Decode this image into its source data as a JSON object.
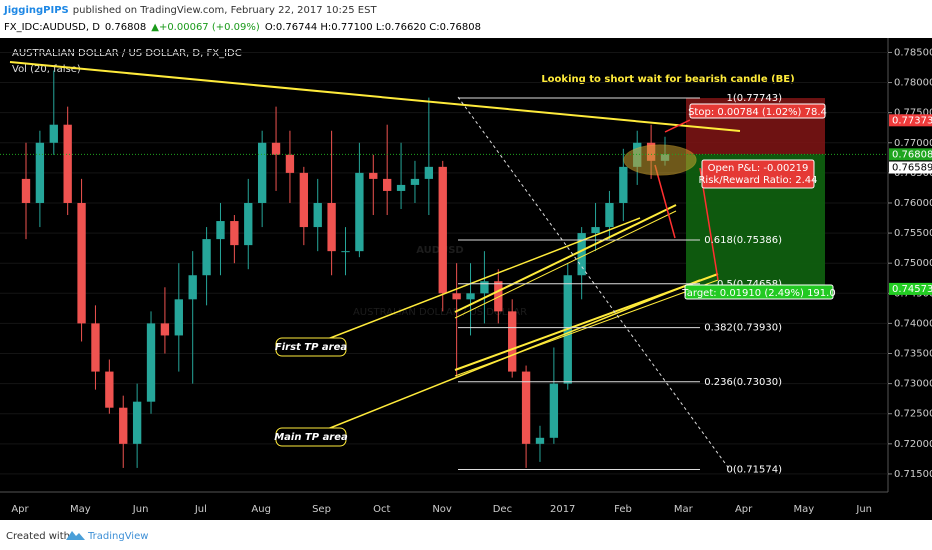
{
  "header": {
    "author": "JiggingPIPS",
    "published": "published on TradingView.com, February 22, 2017 10:25 EST",
    "symbol": "FX_IDC:AUDUSD, D",
    "last": "0.76808",
    "change": "▲+0.00067 (+0.09%)",
    "ohlc": "O:0.76744 H:0.77100 L:0.76620 C:0.76808"
  },
  "footer": {
    "created": "Created with",
    "brand": "TradingView"
  },
  "chart_data": {
    "type": "candlestick",
    "title": "AUSTRALIAN DOLLAR / US DOLLAR, D, FX_IDC",
    "volume_label": "Vol (20, false)",
    "watermark": "AUDUSD",
    "watermark_sub": "AUSTRALIAN DOLLAR / US DOLLAR",
    "annotation": "Looking to short wait for bearish candle (BE)",
    "callouts": [
      "First TP area",
      "Main TP area"
    ],
    "stop_label": "Stop: 0.00784 (1.02%) 78.4",
    "pnl_label": "Open P&L: -0.00219",
    "rr_label": "Risk/Reward Ratio: 2.44",
    "target_label": "Target: 0.01910 (2.49%) 191.0",
    "up_color": "#26a69a",
    "down_color": "#ef5350",
    "month_labels": [
      "Apr",
      "May",
      "Jun",
      "Jul",
      "Aug",
      "Sep",
      "Oct",
      "Nov",
      "Dec",
      "2017",
      "Feb",
      "Mar",
      "Apr",
      "May",
      "Jun"
    ],
    "open": [
      0.764,
      0.76,
      0.77,
      0.773,
      0.76,
      0.74,
      0.732,
      0.726,
      0.72,
      0.727,
      0.74,
      0.738,
      0.744,
      0.748,
      0.754,
      0.757,
      0.753,
      0.76,
      0.77,
      0.768,
      0.765,
      0.756,
      0.76,
      0.752,
      0.752,
      0.765,
      0.764,
      0.762,
      0.763,
      0.764,
      0.766,
      0.745,
      0.744,
      0.745,
      0.747,
      0.742,
      0.732,
      0.72,
      0.721,
      0.73,
      0.748,
      0.755,
      0.756,
      0.76,
      0.766,
      0.77,
      0.767
    ],
    "high": [
      0.77,
      0.772,
      0.782,
      0.776,
      0.764,
      0.743,
      0.734,
      0.728,
      0.73,
      0.742,
      0.746,
      0.75,
      0.752,
      0.756,
      0.76,
      0.758,
      0.764,
      0.772,
      0.776,
      0.772,
      0.766,
      0.764,
      0.772,
      0.756,
      0.77,
      0.768,
      0.773,
      0.77,
      0.767,
      0.7775,
      0.767,
      0.75,
      0.75,
      0.752,
      0.749,
      0.744,
      0.733,
      0.723,
      0.736,
      0.75,
      0.756,
      0.76,
      0.762,
      0.769,
      0.772,
      0.773,
      0.771
    ],
    "low": [
      0.754,
      0.756,
      0.768,
      0.758,
      0.737,
      0.729,
      0.725,
      0.716,
      0.716,
      0.725,
      0.735,
      0.732,
      0.73,
      0.743,
      0.748,
      0.75,
      0.749,
      0.756,
      0.762,
      0.76,
      0.753,
      0.752,
      0.748,
      0.748,
      0.751,
      0.758,
      0.758,
      0.759,
      0.76,
      0.758,
      0.742,
      0.731,
      0.738,
      0.74,
      0.74,
      0.731,
      0.716,
      0.717,
      0.72,
      0.729,
      0.744,
      0.752,
      0.754,
      0.757,
      0.763,
      0.764,
      0.7662
    ],
    "close": [
      0.76,
      0.77,
      0.773,
      0.76,
      0.74,
      0.732,
      0.726,
      0.72,
      0.727,
      0.74,
      0.738,
      0.744,
      0.748,
      0.754,
      0.757,
      0.753,
      0.76,
      0.77,
      0.768,
      0.765,
      0.756,
      0.76,
      0.752,
      0.752,
      0.765,
      0.764,
      0.762,
      0.763,
      0.764,
      0.766,
      0.745,
      0.744,
      0.745,
      0.747,
      0.742,
      0.732,
      0.72,
      0.721,
      0.73,
      0.748,
      0.755,
      0.756,
      0.76,
      0.766,
      0.77,
      0.767,
      0.7681
    ],
    "fib_levels": [
      {
        "value": 0.77743,
        "label": "1(0.77743)"
      },
      {
        "value": 0.75386,
        "label": "0.618(0.75386)"
      },
      {
        "value": 0.74658,
        "label": "0.5(0.74658)"
      },
      {
        "value": 0.7393,
        "label": "0.382(0.73930)"
      },
      {
        "value": 0.7303,
        "label": "0.236(0.73030)"
      },
      {
        "value": 0.71574,
        "label": "0(0.71574)"
      }
    ],
    "price_tags": [
      {
        "value": 0.77373,
        "color": "#ef3b3b"
      },
      {
        "value": 0.76808,
        "color": "#1fa51f"
      },
      {
        "value": 0.76589,
        "color": "#ffffff"
      },
      {
        "value": 0.74573,
        "color": "#22cc22"
      }
    ],
    "ylim": [
      0.712,
      0.7874
    ],
    "yticks": [
      {
        "value": 0.715,
        "label": "0.71500"
      },
      {
        "value": 0.72,
        "label": "0.72000"
      },
      {
        "value": 0.725,
        "label": "0.72500"
      },
      {
        "value": 0.73,
        "label": "0.73000"
      },
      {
        "value": 0.735,
        "label": "0.73500"
      },
      {
        "value": 0.74,
        "label": "0.74000"
      },
      {
        "value": 0.745,
        "label": "0.74500"
      },
      {
        "value": 0.75,
        "label": "0.75000"
      },
      {
        "value": 0.755,
        "label": "0.75500"
      },
      {
        "value": 0.76,
        "label": "0.76000"
      },
      {
        "value": 0.765,
        "label": "0.76500"
      },
      {
        "value": 0.77,
        "label": "0.77000"
      },
      {
        "value": 0.775,
        "label": "0.77500"
      },
      {
        "value": 0.78,
        "label": "0.78000"
      },
      {
        "value": 0.785,
        "label": "0.78500"
      }
    ]
  }
}
